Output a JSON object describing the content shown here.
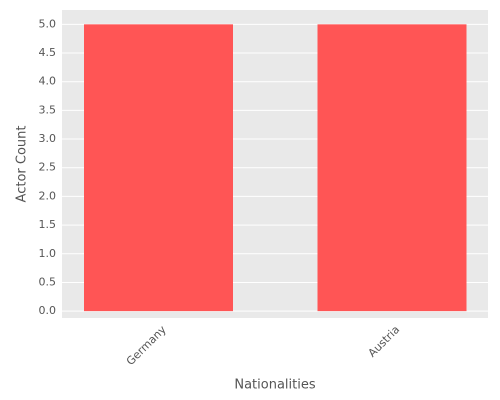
{
  "chart_data": {
    "type": "bar",
    "categories": [
      "Germany",
      "Austria"
    ],
    "values": [
      5,
      5
    ],
    "color": "#ff5555",
    "xlabel": "Nationalities",
    "ylabel": "Actor Count",
    "ylim": [
      -0.12,
      5.25
    ],
    "yticks": [
      {
        "value": 0,
        "label": "0.0"
      },
      {
        "value": 0.5,
        "label": "0.5"
      },
      {
        "value": 1,
        "label": "1.0"
      },
      {
        "value": 1.5,
        "label": "1.5"
      },
      {
        "value": 2,
        "label": "2.0"
      },
      {
        "value": 2.5,
        "label": "2.5"
      },
      {
        "value": 3,
        "label": "3.0"
      },
      {
        "value": 3.5,
        "label": "3.5"
      },
      {
        "value": 4,
        "label": "4.0"
      },
      {
        "value": 4.5,
        "label": "4.5"
      },
      {
        "value": 5,
        "label": "5.0"
      }
    ],
    "grid": true
  }
}
